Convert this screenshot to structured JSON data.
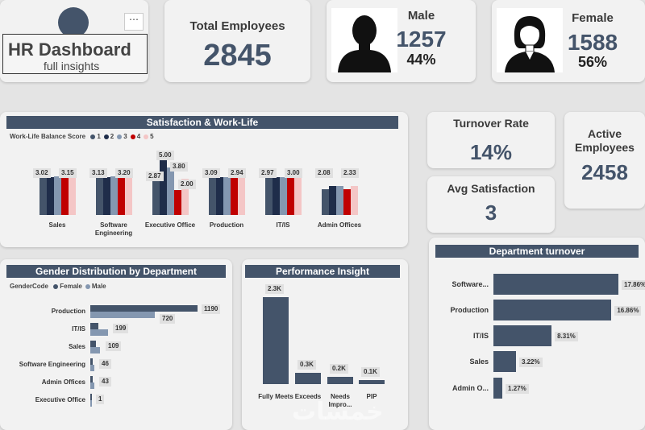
{
  "header": {
    "title": "HR Dashboard",
    "subtitle": "full insights",
    "menu_icon": "ellipsis-icon"
  },
  "kpis": {
    "total_employees": {
      "label": "Total Employees",
      "value": "2845"
    },
    "male": {
      "label": "Male",
      "value": "1257",
      "pct": "44%",
      "icon": "male-silhouette-icon"
    },
    "female": {
      "label": "Female",
      "value": "1588",
      "pct": "56%",
      "icon": "female-silhouette-icon"
    },
    "turnover_rate": {
      "label": "Turnover Rate",
      "value": "14%"
    },
    "avg_satisfaction": {
      "label": "Avg Satisfaction",
      "value": "3"
    },
    "active_employees": {
      "label": "Active Employees",
      "value": "2458"
    }
  },
  "satisfaction": {
    "title": "Satisfaction & Work-Life",
    "legend_title": "Work-Life Balance Score",
    "legend": [
      {
        "name": "1",
        "color": "#44546a"
      },
      {
        "name": "2",
        "color": "#1f2d4a"
      },
      {
        "name": "3",
        "color": "#8497b0"
      },
      {
        "name": "4",
        "color": "#c00000"
      },
      {
        "name": "5",
        "color": "#f4c6c6"
      }
    ]
  },
  "gender": {
    "title": "Gender Distribution by Department",
    "legend_title": "GenderCode",
    "legend": [
      {
        "name": "Female",
        "color": "#44546a"
      },
      {
        "name": "Male",
        "color": "#8497b0"
      }
    ]
  },
  "performance": {
    "title": "Performance Insight"
  },
  "dept_turnover": {
    "title": "Department turnover"
  },
  "chart_data": [
    {
      "type": "bar",
      "title": "Satisfaction & Work-Life",
      "categories": [
        "Sales",
        "Software Engineering",
        "Executive Office",
        "Production",
        "IT/IS",
        "Admin Offices"
      ],
      "series": [
        {
          "name": "1",
          "values": [
            3.0,
            3.0,
            2.8,
            3.0,
            2.95,
            2.08
          ]
        },
        {
          "name": "2",
          "values": [
            3.0,
            3.0,
            5.0,
            3.0,
            3.0,
            2.33
          ]
        },
        {
          "name": "3",
          "values": [
            3.1,
            3.05,
            3.8,
            3.0,
            3.0,
            2.33
          ]
        },
        {
          "name": "4",
          "values": [
            3.02,
            3.13,
            2.0,
            3.09,
            2.97,
            2.08
          ]
        },
        {
          "name": "5",
          "values": [
            3.15,
            3.2,
            2.87,
            2.94,
            3.0,
            2.33
          ]
        }
      ],
      "data_labels": [
        {
          "category": "Sales",
          "labels": [
            "3.02",
            "3.15"
          ]
        },
        {
          "category": "Software Engineering",
          "labels": [
            "3.13",
            "3.20"
          ]
        },
        {
          "category": "Executive Office",
          "labels": [
            "2.87",
            "5.00",
            "3.80",
            "2.00"
          ]
        },
        {
          "category": "Production",
          "labels": [
            "3.09",
            "2.94"
          ]
        },
        {
          "category": "IT/IS",
          "labels": [
            "2.97",
            "3.00"
          ]
        },
        {
          "category": "Admin Offices",
          "labels": [
            "2.08",
            "2.33"
          ]
        }
      ],
      "ylim": [
        0,
        5
      ]
    },
    {
      "type": "bar",
      "orientation": "horizontal",
      "title": "Gender Distribution by Department",
      "categories": [
        "Production",
        "IT/IS",
        "Sales",
        "Software Engineering",
        "Admin Offices",
        "Executive Office"
      ],
      "series": [
        {
          "name": "Female",
          "values": [
            1190,
            88,
            63,
            27,
            24,
            1
          ]
        },
        {
          "name": "Male",
          "values": [
            720,
            199,
            109,
            46,
            43,
            1
          ]
        }
      ],
      "data_labels": [
        "1190",
        "720",
        "199",
        "109",
        "46",
        "43",
        "1"
      ]
    },
    {
      "type": "bar",
      "title": "Performance Insight",
      "categories": [
        "Fully Meets",
        "Exceeds",
        "Needs Impro...",
        "PIP"
      ],
      "values": [
        2300,
        300,
        200,
        100
      ],
      "value_labels": [
        "2.3K",
        "0.3K",
        "0.2K",
        "0.1K"
      ]
    },
    {
      "type": "bar",
      "orientation": "horizontal",
      "title": "Department turnover",
      "categories": [
        "Software...",
        "Production",
        "IT/IS",
        "Sales",
        "Admin O..."
      ],
      "values": [
        17.86,
        16.86,
        8.31,
        3.22,
        1.27
      ],
      "value_labels": [
        "17.86%",
        "16.86%",
        "8.31%",
        "3.22%",
        "1.27%"
      ]
    }
  ],
  "watermark": "خمسات"
}
